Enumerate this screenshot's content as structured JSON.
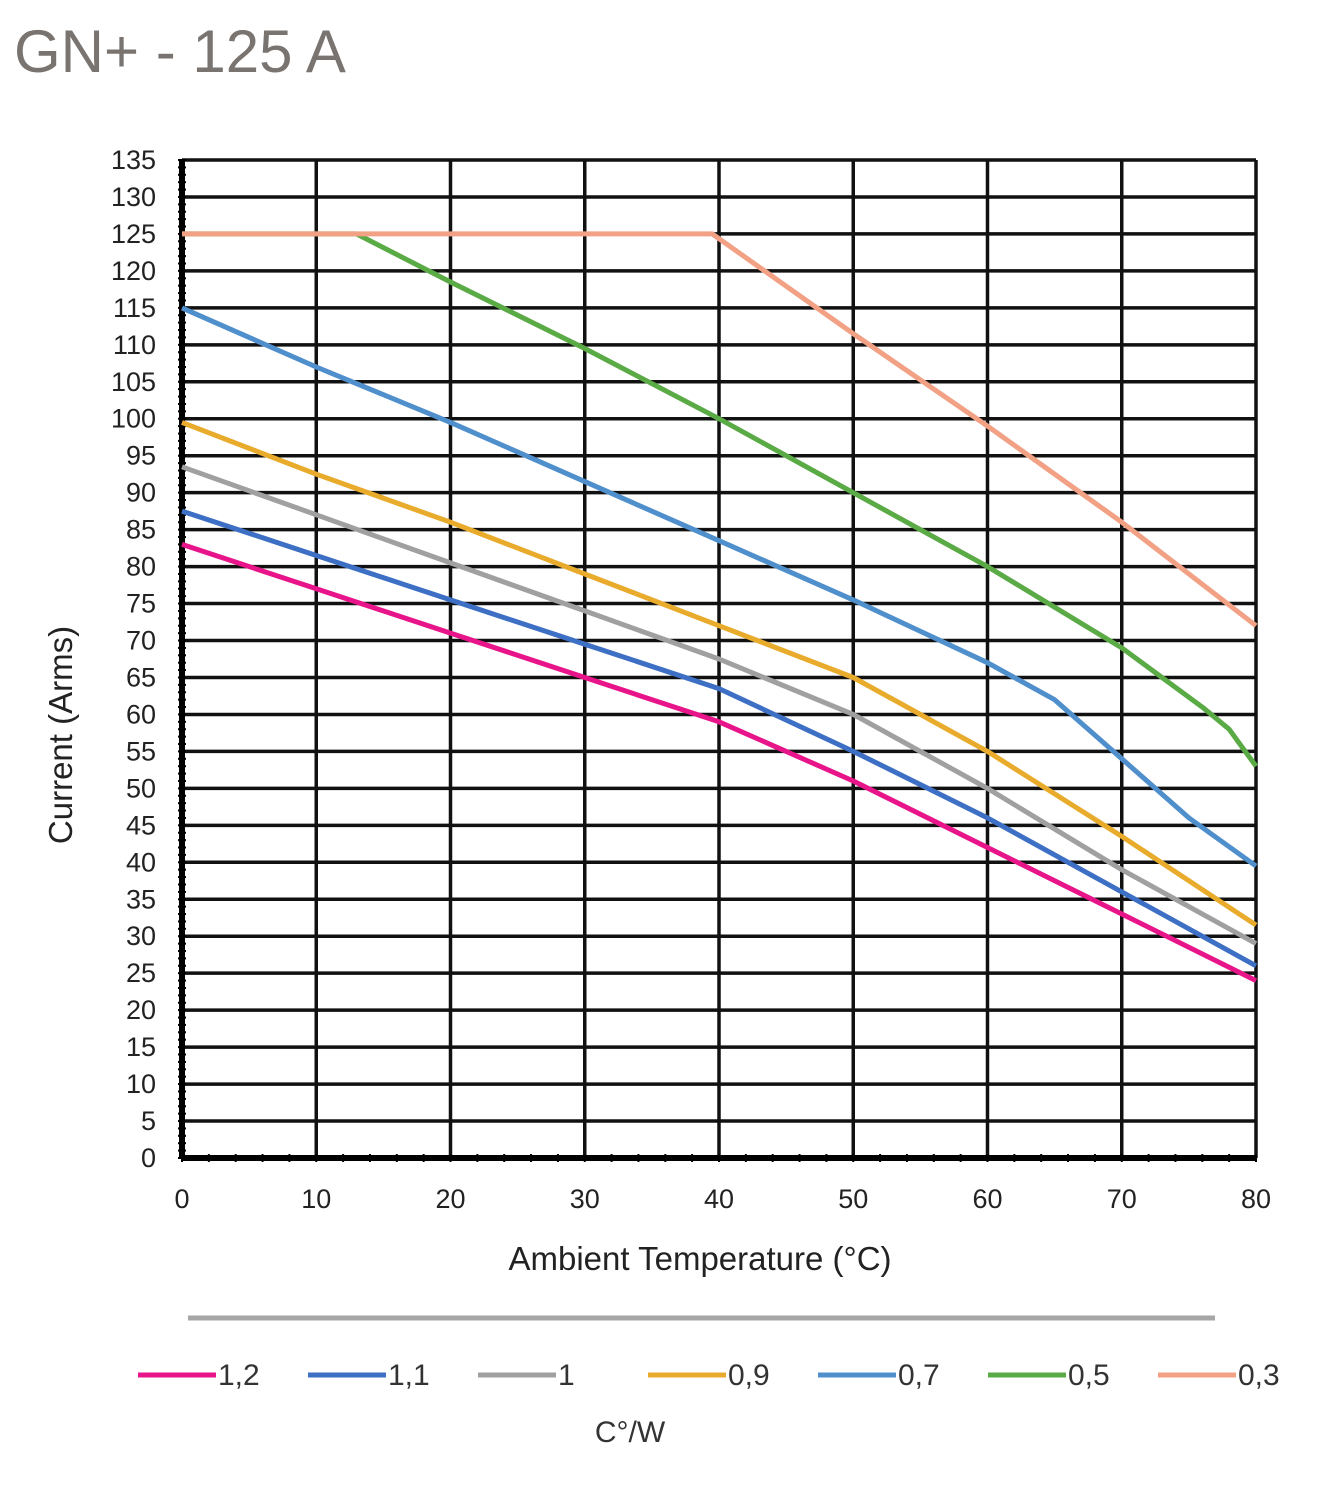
{
  "page": {
    "title": "GN+ - 125 A",
    "title_color": "#7a7470"
  },
  "chart_data": {
    "type": "line",
    "title": "GN+ - 125 A",
    "xlabel": "Ambient Temperature (°C)",
    "ylabel": "Current (Arms)",
    "xlim": [
      0,
      80
    ],
    "ylim": [
      0,
      135
    ],
    "x_ticks": [
      0,
      10,
      20,
      30,
      40,
      50,
      60,
      70,
      80
    ],
    "y_ticks": [
      0,
      5,
      10,
      15,
      20,
      25,
      30,
      35,
      40,
      45,
      50,
      55,
      60,
      65,
      70,
      75,
      80,
      85,
      90,
      95,
      100,
      105,
      110,
      115,
      120,
      125,
      130,
      135
    ],
    "grid": true,
    "legend_position": "bottom",
    "legend_title": "C°/W",
    "series": [
      {
        "name": "1,2",
        "color": "#e8158a",
        "points": [
          [
            0,
            83
          ],
          [
            10,
            77
          ],
          [
            20,
            71
          ],
          [
            30,
            65
          ],
          [
            40,
            59
          ],
          [
            50,
            51
          ],
          [
            60,
            42
          ],
          [
            70,
            33
          ],
          [
            80,
            24
          ]
        ]
      },
      {
        "name": "1,1",
        "color": "#3d6fc4",
        "points": [
          [
            0,
            87.5
          ],
          [
            10,
            81.5
          ],
          [
            20,
            75.5
          ],
          [
            30,
            69.5
          ],
          [
            40,
            63.5
          ],
          [
            50,
            55
          ],
          [
            60,
            46
          ],
          [
            70,
            36
          ],
          [
            80,
            26
          ]
        ]
      },
      {
        "name": "1",
        "color": "#a0a0a0",
        "points": [
          [
            0,
            93.5
          ],
          [
            10,
            87
          ],
          [
            20,
            80.5
          ],
          [
            30,
            74
          ],
          [
            40,
            67.5
          ],
          [
            50,
            60
          ],
          [
            60,
            50
          ],
          [
            70,
            39
          ],
          [
            80,
            29
          ]
        ]
      },
      {
        "name": "0,9",
        "color": "#e8ab2c",
        "points": [
          [
            0,
            99.5
          ],
          [
            10,
            92.5
          ],
          [
            20,
            86
          ],
          [
            30,
            79
          ],
          [
            40,
            72
          ],
          [
            50,
            65
          ],
          [
            60,
            55
          ],
          [
            70,
            43.5
          ],
          [
            80,
            31.5
          ]
        ]
      },
      {
        "name": "0,7",
        "color": "#4f8fcc",
        "points": [
          [
            0,
            115
          ],
          [
            10,
            107
          ],
          [
            20,
            99.5
          ],
          [
            30,
            91.5
          ],
          [
            40,
            83.5
          ],
          [
            50,
            75.5
          ],
          [
            60,
            67
          ],
          [
            65,
            62
          ],
          [
            70,
            54
          ],
          [
            75,
            46
          ],
          [
            80,
            39.5
          ]
        ]
      },
      {
        "name": "0,5",
        "color": "#5aaa46",
        "points": [
          [
            0,
            125
          ],
          [
            13,
            125
          ],
          [
            20,
            118.5
          ],
          [
            30,
            109.5
          ],
          [
            40,
            100
          ],
          [
            50,
            90
          ],
          [
            60,
            80
          ],
          [
            70,
            69
          ],
          [
            76,
            61
          ],
          [
            78,
            58
          ],
          [
            80,
            53
          ]
        ]
      },
      {
        "name": "0,3",
        "color": "#f2a185",
        "points": [
          [
            0,
            125
          ],
          [
            39.5,
            125
          ],
          [
            50,
            111.5
          ],
          [
            60,
            99
          ],
          [
            70,
            86
          ],
          [
            80,
            72
          ]
        ]
      }
    ]
  }
}
